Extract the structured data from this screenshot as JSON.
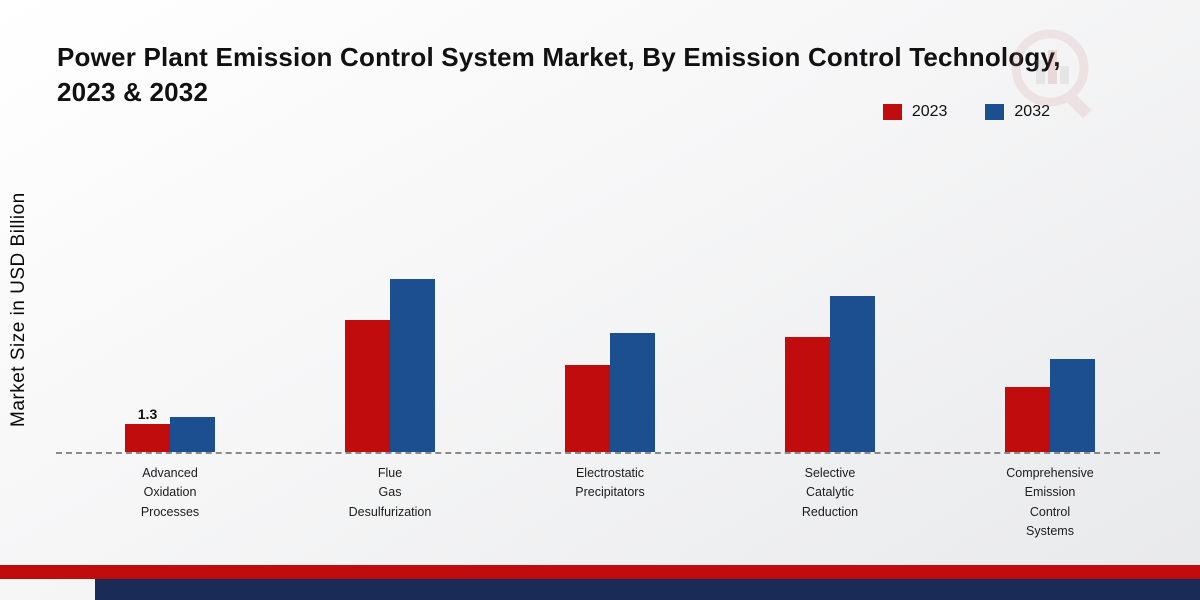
{
  "title": "Power Plant Emission Control System Market, By Emission Control Technology,\n2023 & 2032",
  "ylabel": "Market Size in USD Billion",
  "legend": [
    {
      "label": "2023",
      "color": "#c00c0c"
    },
    {
      "label": "2032",
      "color": "#1b4f8f"
    }
  ],
  "colors": {
    "accent-red": "#c00c0c",
    "accent-blue": "#1b4f8f",
    "footer-navy": "#1a2b57",
    "axis-dash": "#8a8a8a"
  },
  "chart_data": {
    "type": "bar",
    "title": "Power Plant Emission Control System Market, By Emission Control Technology, 2023 & 2032",
    "xlabel": "",
    "ylabel": "Market Size in USD Billion",
    "categories": [
      "Advanced\nOxidation\nProcesses",
      "Flue\nGas\nDesulfurization",
      "Electrostatic\nPrecipitators",
      "Selective\nCatalytic\nReduction",
      "Comprehensive\nEmission\nControl\nSystems"
    ],
    "series": [
      {
        "name": "2023",
        "color": "#c00c0c",
        "values": [
          1.3,
          6.1,
          4.0,
          5.3,
          3.0
        ]
      },
      {
        "name": "2032",
        "color": "#1b4f8f",
        "values": [
          1.6,
          8.0,
          5.5,
          7.2,
          4.3
        ]
      }
    ],
    "annotations": [
      {
        "series": "2023",
        "category_index": 0,
        "text": "1.3"
      }
    ],
    "ylim": [
      0,
      9
    ],
    "grid": false,
    "legend_position": "top-right"
  }
}
